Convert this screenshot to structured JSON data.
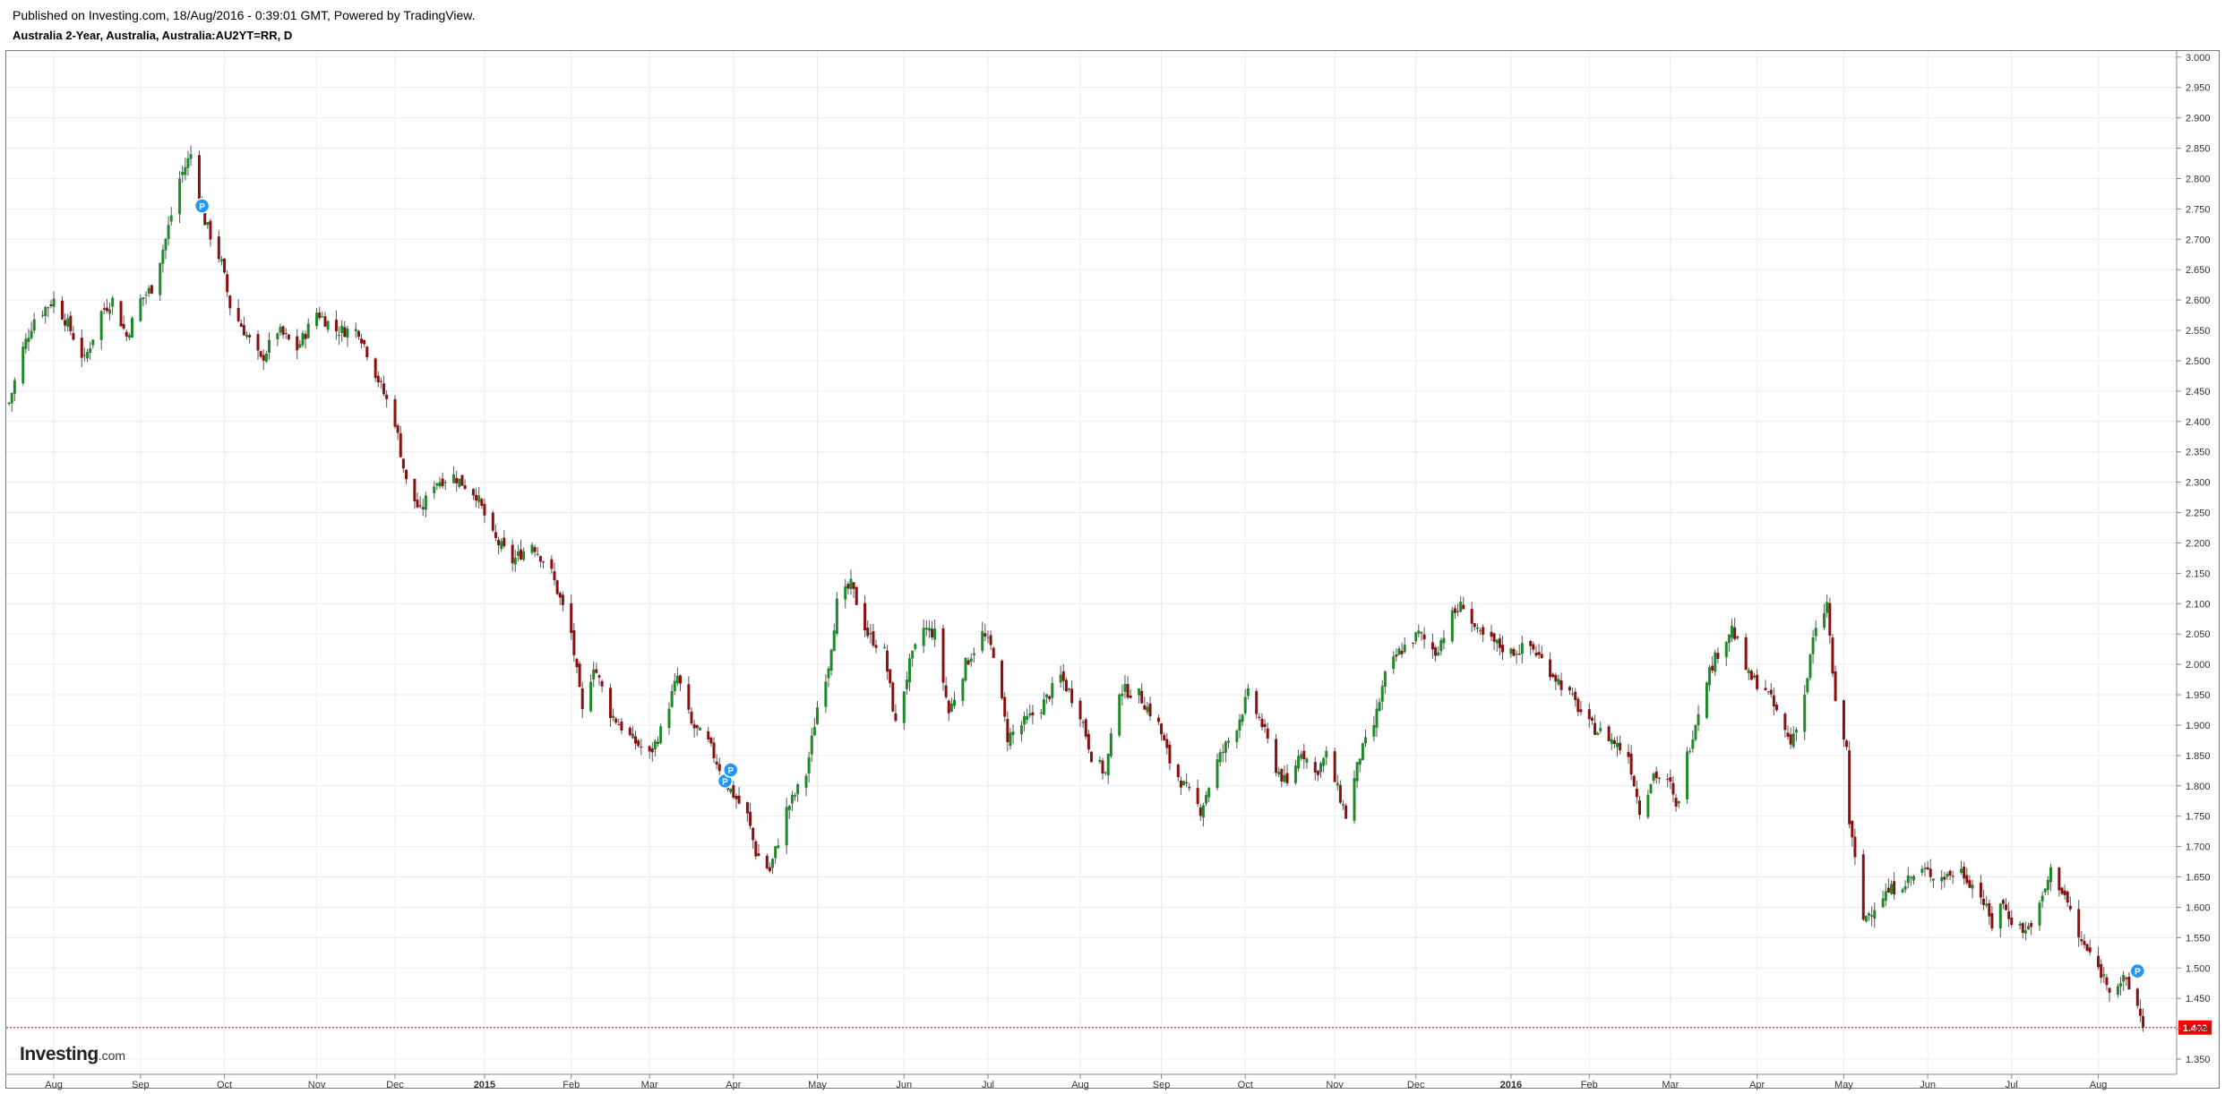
{
  "header": {
    "published": "Published on Investing.com, 18/Aug/2016 - 0:39:01 GMT, Powered by TradingView.",
    "title": "Australia 2-Year, Australia, Australia:AU2YT=RR, D"
  },
  "logo": {
    "brand": "Investing",
    "tld": ".com"
  },
  "colors": {
    "up": "#1f8a2a",
    "down": "#8b0f0f",
    "grid": "#ececec",
    "axis_text": "#333333",
    "last_price_bg": "#ff0000",
    "last_price_line": "#ff0000",
    "marker": "#2196f3"
  },
  "chart_data": {
    "type": "candlestick",
    "title": "Australia 2-Year, Australia, Australia:AU2YT=RR, D",
    "ylim": [
      1.325,
      3.01
    ],
    "y_ticks": [
      "1.350",
      "1.400",
      "1.450",
      "1.500",
      "1.550",
      "1.600",
      "1.650",
      "1.700",
      "1.750",
      "1.800",
      "1.850",
      "1.900",
      "1.950",
      "2.000",
      "2.050",
      "2.100",
      "2.150",
      "2.200",
      "2.250",
      "2.300",
      "2.350",
      "2.400",
      "2.450",
      "2.500",
      "2.550",
      "2.600",
      "2.650",
      "2.700",
      "2.750",
      "2.800",
      "2.850",
      "2.900",
      "2.950",
      "3.000"
    ],
    "x_range": [
      "2014-07-15",
      "2016-08-29"
    ],
    "x_ticks": [
      {
        "date": "2014-08-01",
        "label": "Aug",
        "bold": false
      },
      {
        "date": "2014-09-01",
        "label": "Sep",
        "bold": false
      },
      {
        "date": "2014-10-01",
        "label": "Oct",
        "bold": false
      },
      {
        "date": "2014-11-03",
        "label": "Nov",
        "bold": false
      },
      {
        "date": "2014-12-01",
        "label": "Dec",
        "bold": false
      },
      {
        "date": "2015-01-02",
        "label": "2015",
        "bold": true
      },
      {
        "date": "2015-02-02",
        "label": "Feb",
        "bold": false
      },
      {
        "date": "2015-03-02",
        "label": "Mar",
        "bold": false
      },
      {
        "date": "2015-04-01",
        "label": "Apr",
        "bold": false
      },
      {
        "date": "2015-05-01",
        "label": "May",
        "bold": false
      },
      {
        "date": "2015-06-01",
        "label": "Jun",
        "bold": false
      },
      {
        "date": "2015-07-01",
        "label": "Jul",
        "bold": false
      },
      {
        "date": "2015-08-03",
        "label": "Aug",
        "bold": false
      },
      {
        "date": "2015-09-01",
        "label": "Sep",
        "bold": false
      },
      {
        "date": "2015-10-01",
        "label": "Oct",
        "bold": false
      },
      {
        "date": "2015-11-02",
        "label": "Nov",
        "bold": false
      },
      {
        "date": "2015-12-01",
        "label": "Dec",
        "bold": false
      },
      {
        "date": "2016-01-04",
        "label": "2016",
        "bold": true
      },
      {
        "date": "2016-02-01",
        "label": "Feb",
        "bold": false
      },
      {
        "date": "2016-03-01",
        "label": "Mar",
        "bold": false
      },
      {
        "date": "2016-04-01",
        "label": "Apr",
        "bold": false
      },
      {
        "date": "2016-05-02",
        "label": "May",
        "bold": false
      },
      {
        "date": "2016-06-01",
        "label": "Jun",
        "bold": false
      },
      {
        "date": "2016-07-01",
        "label": "Jul",
        "bold": false
      },
      {
        "date": "2016-08-01",
        "label": "Aug",
        "bold": false
      }
    ],
    "close_path": [
      [
        "2014-07-16",
        2.43
      ],
      [
        "2014-07-21",
        2.52
      ],
      [
        "2014-07-25",
        2.57
      ],
      [
        "2014-08-01",
        2.6
      ],
      [
        "2014-08-06",
        2.56
      ],
      [
        "2014-08-12",
        2.5
      ],
      [
        "2014-08-18",
        2.58
      ],
      [
        "2014-08-22",
        2.6
      ],
      [
        "2014-08-27",
        2.54
      ],
      [
        "2014-09-01",
        2.6
      ],
      [
        "2014-09-05",
        2.62
      ],
      [
        "2014-09-10",
        2.7
      ],
      [
        "2014-09-15",
        2.8
      ],
      [
        "2014-09-19",
        2.84
      ],
      [
        "2014-09-24",
        2.73
      ],
      [
        "2014-09-30",
        2.66
      ],
      [
        "2014-10-03",
        2.59
      ],
      [
        "2014-10-08",
        2.55
      ],
      [
        "2014-10-14",
        2.5
      ],
      [
        "2014-10-20",
        2.55
      ],
      [
        "2014-10-27",
        2.52
      ],
      [
        "2014-11-03",
        2.58
      ],
      [
        "2014-11-10",
        2.55
      ],
      [
        "2014-11-18",
        2.55
      ],
      [
        "2014-11-24",
        2.48
      ],
      [
        "2014-12-01",
        2.4
      ],
      [
        "2014-12-05",
        2.3
      ],
      [
        "2014-12-10",
        2.25
      ],
      [
        "2014-12-15",
        2.3
      ],
      [
        "2014-12-22",
        2.31
      ],
      [
        "2014-12-30",
        2.28
      ],
      [
        "2015-01-05",
        2.21
      ],
      [
        "2015-01-12",
        2.17
      ],
      [
        "2015-01-19",
        2.2
      ],
      [
        "2015-01-26",
        2.15
      ],
      [
        "2015-02-02",
        2.05
      ],
      [
        "2015-02-06",
        1.92
      ],
      [
        "2015-02-10",
        2.0
      ],
      [
        "2015-02-16",
        1.92
      ],
      [
        "2015-02-23",
        1.88
      ],
      [
        "2015-03-02",
        1.85
      ],
      [
        "2015-03-06",
        1.89
      ],
      [
        "2015-03-12",
        1.98
      ],
      [
        "2015-03-17",
        1.9
      ],
      [
        "2015-03-23",
        1.87
      ],
      [
        "2015-03-30",
        1.8
      ],
      [
        "2015-04-06",
        1.75
      ],
      [
        "2015-04-09",
        1.69
      ],
      [
        "2015-04-14",
        1.66
      ],
      [
        "2015-04-20",
        1.76
      ],
      [
        "2015-04-27",
        1.82
      ],
      [
        "2015-05-01",
        1.93
      ],
      [
        "2015-05-05",
        2.0
      ],
      [
        "2015-05-08",
        2.1
      ],
      [
        "2015-05-13",
        2.13
      ],
      [
        "2015-05-19",
        2.05
      ],
      [
        "2015-05-25",
        2.02
      ],
      [
        "2015-05-29",
        1.9
      ],
      [
        "2015-06-03",
        2.0
      ],
      [
        "2015-06-08",
        2.06
      ],
      [
        "2015-06-12",
        2.05
      ],
      [
        "2015-06-17",
        1.92
      ],
      [
        "2015-06-23",
        2.0
      ],
      [
        "2015-06-29",
        2.05
      ],
      [
        "2015-07-03",
        2.02
      ],
      [
        "2015-07-08",
        1.88
      ],
      [
        "2015-07-13",
        1.9
      ],
      [
        "2015-07-20",
        1.93
      ],
      [
        "2015-07-27",
        1.98
      ],
      [
        "2015-08-03",
        1.92
      ],
      [
        "2015-08-07",
        1.85
      ],
      [
        "2015-08-12",
        1.82
      ],
      [
        "2015-08-17",
        1.96
      ],
      [
        "2015-08-24",
        1.95
      ],
      [
        "2015-08-31",
        1.9
      ],
      [
        "2015-09-04",
        1.84
      ],
      [
        "2015-09-09",
        1.8
      ],
      [
        "2015-09-15",
        1.76
      ],
      [
        "2015-09-21",
        1.84
      ],
      [
        "2015-09-28",
        1.9
      ],
      [
        "2015-10-02",
        1.95
      ],
      [
        "2015-10-07",
        1.9
      ],
      [
        "2015-10-12",
        1.83
      ],
      [
        "2015-10-16",
        1.8
      ],
      [
        "2015-10-21",
        1.86
      ],
      [
        "2015-10-26",
        1.82
      ],
      [
        "2015-10-30",
        1.85
      ],
      [
        "2015-11-04",
        1.78
      ],
      [
        "2015-11-06",
        1.75
      ],
      [
        "2015-11-11",
        1.85
      ],
      [
        "2015-11-16",
        1.9
      ],
      [
        "2015-11-20",
        1.98
      ],
      [
        "2015-11-25",
        2.02
      ],
      [
        "2015-12-02",
        2.05
      ],
      [
        "2015-12-08",
        2.02
      ],
      [
        "2015-12-14",
        2.08
      ],
      [
        "2015-12-18",
        2.1
      ],
      [
        "2015-12-23",
        2.05
      ],
      [
        "2016-01-04",
        2.02
      ],
      [
        "2016-01-11",
        2.03
      ],
      [
        "2016-01-18",
        1.99
      ],
      [
        "2016-01-25",
        1.95
      ],
      [
        "2016-02-01",
        1.9
      ],
      [
        "2016-02-08",
        1.88
      ],
      [
        "2016-02-15",
        1.85
      ],
      [
        "2016-02-19",
        1.76
      ],
      [
        "2016-02-24",
        1.82
      ],
      [
        "2016-03-01",
        1.8
      ],
      [
        "2016-03-03",
        1.76
      ],
      [
        "2016-03-07",
        1.85
      ],
      [
        "2016-03-14",
        1.98
      ],
      [
        "2016-03-18",
        2.02
      ],
      [
        "2016-03-23",
        2.06
      ],
      [
        "2016-03-29",
        1.98
      ],
      [
        "2016-04-04",
        1.96
      ],
      [
        "2016-04-08",
        1.92
      ],
      [
        "2016-04-13",
        1.87
      ],
      [
        "2016-04-18",
        1.95
      ],
      [
        "2016-04-21",
        2.04
      ],
      [
        "2016-04-26",
        2.1
      ],
      [
        "2016-04-29",
        1.93
      ],
      [
        "2016-05-03",
        1.86
      ],
      [
        "2016-05-04",
        1.74
      ],
      [
        "2016-05-09",
        1.58
      ],
      [
        "2016-05-16",
        1.62
      ],
      [
        "2016-05-23",
        1.64
      ],
      [
        "2016-05-30",
        1.66
      ],
      [
        "2016-06-06",
        1.65
      ],
      [
        "2016-06-13",
        1.66
      ],
      [
        "2016-06-20",
        1.62
      ],
      [
        "2016-06-24",
        1.57
      ],
      [
        "2016-06-27",
        1.61
      ],
      [
        "2016-07-01",
        1.58
      ],
      [
        "2016-07-06",
        1.56
      ],
      [
        "2016-07-11",
        1.6
      ],
      [
        "2016-07-15",
        1.66
      ],
      [
        "2016-07-20",
        1.62
      ],
      [
        "2016-07-25",
        1.55
      ],
      [
        "2016-08-01",
        1.5
      ],
      [
        "2016-08-05",
        1.47
      ],
      [
        "2016-08-10",
        1.48
      ],
      [
        "2016-08-15",
        1.44
      ],
      [
        "2016-08-17",
        1.402
      ]
    ],
    "last_price": {
      "value": 1.402,
      "label": "1.402"
    },
    "markers": [
      {
        "date": "2014-09-23",
        "price": 2.755,
        "label": "P"
      },
      {
        "date": "2015-03-29",
        "price": 1.808,
        "label": "P"
      },
      {
        "date": "2015-03-31",
        "price": 1.826,
        "label": "P"
      },
      {
        "date": "2016-08-15",
        "price": 1.495,
        "label": "P"
      }
    ],
    "grid": true
  }
}
